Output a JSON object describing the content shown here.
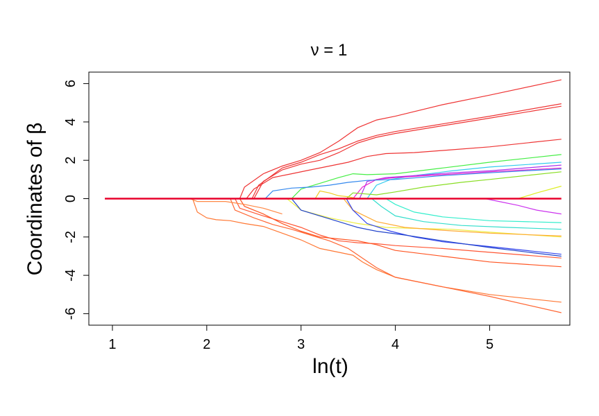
{
  "chart_data": {
    "type": "line",
    "title": "ν = 1",
    "xlabel": "ln(t)",
    "ylabel": "Coordinates of β",
    "xlim": [
      0.75,
      5.85
    ],
    "ylim": [
      -6.6,
      6.6
    ],
    "x_ticks": [
      1,
      2,
      3,
      4,
      5
    ],
    "y_ticks": [
      -6,
      -4,
      -2,
      0,
      2,
      4,
      6
    ],
    "x_tick_labels": [
      "1",
      "2",
      "3",
      "4",
      "5"
    ],
    "y_tick_labels": [
      "-6",
      "-4",
      "-2",
      "0",
      "2",
      "4",
      "6"
    ],
    "grid": false,
    "legend": "none",
    "zero_line_color": "#e8002a",
    "series": [
      {
        "color": "#ee3333",
        "points": [
          [
            0.92,
            0
          ],
          [
            2.35,
            0
          ],
          [
            2.4,
            0.6
          ],
          [
            2.6,
            1.3
          ],
          [
            2.8,
            1.7
          ],
          [
            3.0,
            2.0
          ],
          [
            3.2,
            2.4
          ],
          [
            3.4,
            3.0
          ],
          [
            3.6,
            3.7
          ],
          [
            3.8,
            4.1
          ],
          [
            4.0,
            4.3
          ],
          [
            4.5,
            4.9
          ],
          [
            5.0,
            5.4
          ],
          [
            5.76,
            6.2
          ]
        ]
      },
      {
        "color": "#ee3333",
        "points": [
          [
            0.92,
            0
          ],
          [
            2.48,
            0
          ],
          [
            2.55,
            0.7
          ],
          [
            2.8,
            1.6
          ],
          [
            3.0,
            1.9
          ],
          [
            3.2,
            2.3
          ],
          [
            3.4,
            2.6
          ],
          [
            3.6,
            3.0
          ],
          [
            3.8,
            3.3
          ],
          [
            4.0,
            3.5
          ],
          [
            4.5,
            3.9
          ],
          [
            5.0,
            4.3
          ],
          [
            5.76,
            4.95
          ]
        ]
      },
      {
        "color": "#ee3333",
        "points": [
          [
            0.92,
            0
          ],
          [
            2.5,
            0
          ],
          [
            2.6,
            0.9
          ],
          [
            2.8,
            1.5
          ],
          [
            3.0,
            1.8
          ],
          [
            3.2,
            2.0
          ],
          [
            3.4,
            2.4
          ],
          [
            3.6,
            2.9
          ],
          [
            3.8,
            3.2
          ],
          [
            4.0,
            3.4
          ],
          [
            4.5,
            3.8
          ],
          [
            5.0,
            4.2
          ],
          [
            5.76,
            4.82
          ]
        ]
      },
      {
        "color": "#ee3333",
        "points": [
          [
            0.92,
            0
          ],
          [
            2.42,
            0
          ],
          [
            2.5,
            0.5
          ],
          [
            2.7,
            1.1
          ],
          [
            2.9,
            1.3
          ],
          [
            3.1,
            1.5
          ],
          [
            3.3,
            1.7
          ],
          [
            3.5,
            1.9
          ],
          [
            3.7,
            2.2
          ],
          [
            3.9,
            2.35
          ],
          [
            4.2,
            2.4
          ],
          [
            4.6,
            2.55
          ],
          [
            5.0,
            2.7
          ],
          [
            5.76,
            3.1
          ]
        ]
      },
      {
        "color": "#44ee44",
        "points": [
          [
            0.92,
            0
          ],
          [
            2.9,
            0
          ],
          [
            3.0,
            0.5
          ],
          [
            3.2,
            0.8
          ],
          [
            3.4,
            1.1
          ],
          [
            3.55,
            1.3
          ],
          [
            3.7,
            1.25
          ],
          [
            4.0,
            1.3
          ],
          [
            4.5,
            1.6
          ],
          [
            5.0,
            1.9
          ],
          [
            5.76,
            2.3
          ]
        ]
      },
      {
        "color": "#33ccee",
        "points": [
          [
            0.92,
            0
          ],
          [
            3.7,
            0
          ],
          [
            3.8,
            0.7
          ],
          [
            3.95,
            1.0
          ],
          [
            4.2,
            1.2
          ],
          [
            4.6,
            1.45
          ],
          [
            5.0,
            1.65
          ],
          [
            5.76,
            1.9
          ]
        ]
      },
      {
        "color": "#aa33ee",
        "points": [
          [
            0.92,
            0
          ],
          [
            3.62,
            0
          ],
          [
            3.7,
            0.9
          ],
          [
            3.9,
            1.1
          ],
          [
            4.2,
            1.2
          ],
          [
            4.6,
            1.35
          ],
          [
            5.0,
            1.45
          ],
          [
            5.76,
            1.75
          ]
        ]
      },
      {
        "color": "#ee22cc",
        "points": [
          [
            0.92,
            0
          ],
          [
            3.55,
            0
          ],
          [
            3.65,
            0.6
          ],
          [
            3.8,
            1.0
          ],
          [
            4.0,
            1.1
          ],
          [
            4.5,
            1.25
          ],
          [
            5.0,
            1.4
          ],
          [
            5.76,
            1.6
          ]
        ]
      },
      {
        "color": "#3388ee",
        "points": [
          [
            0.92,
            0
          ],
          [
            2.62,
            0
          ],
          [
            2.7,
            0.4
          ],
          [
            2.9,
            0.55
          ],
          [
            3.1,
            0.6
          ],
          [
            3.3,
            0.7
          ],
          [
            3.5,
            0.85
          ],
          [
            3.7,
            0.95
          ],
          [
            4.0,
            1.0
          ],
          [
            4.5,
            1.2
          ],
          [
            5.0,
            1.35
          ],
          [
            5.76,
            1.55
          ]
        ]
      },
      {
        "color": "#88dd22",
        "points": [
          [
            0.92,
            0
          ],
          [
            3.48,
            0
          ],
          [
            3.55,
            0.3
          ],
          [
            3.8,
            0.2
          ],
          [
            4.0,
            0.35
          ],
          [
            4.3,
            0.6
          ],
          [
            4.7,
            0.85
          ],
          [
            5.0,
            1.0
          ],
          [
            5.76,
            1.4
          ]
        ]
      },
      {
        "color": "#ddee22",
        "points": [
          [
            0.92,
            0
          ],
          [
            5.3,
            0
          ],
          [
            5.5,
            0.3
          ],
          [
            5.76,
            0.65
          ]
        ]
      },
      {
        "color": "#eecc22",
        "points": [
          [
            0.92,
            0
          ],
          [
            3.15,
            0
          ],
          [
            3.2,
            0.4
          ],
          [
            3.3,
            0.3
          ],
          [
            3.4,
            0.15
          ],
          [
            3.5,
            0.1
          ],
          [
            3.6,
            0.0
          ]
        ]
      },
      {
        "color": "#cc33ee",
        "points": [
          [
            0.92,
            0
          ],
          [
            4.95,
            0
          ],
          [
            5.1,
            -0.15
          ],
          [
            5.3,
            -0.35
          ],
          [
            5.5,
            -0.6
          ],
          [
            5.76,
            -0.8
          ]
        ]
      },
      {
        "color": "#33eecc",
        "points": [
          [
            0.92,
            0
          ],
          [
            3.9,
            0
          ],
          [
            4.0,
            -0.3
          ],
          [
            4.2,
            -0.7
          ],
          [
            4.5,
            -0.95
          ],
          [
            5.0,
            -1.15
          ],
          [
            5.76,
            -1.25
          ]
        ]
      },
      {
        "color": "#33ddcc",
        "points": [
          [
            0.92,
            0
          ],
          [
            3.75,
            0
          ],
          [
            3.85,
            -0.4
          ],
          [
            4.0,
            -0.9
          ],
          [
            4.3,
            -1.2
          ],
          [
            4.7,
            -1.4
          ],
          [
            5.2,
            -1.5
          ],
          [
            5.76,
            -1.6
          ]
        ]
      },
      {
        "color": "#eeee44",
        "points": [
          [
            0.92,
            0
          ],
          [
            2.85,
            0
          ],
          [
            3.0,
            -0.6
          ],
          [
            3.3,
            -1.0
          ],
          [
            3.6,
            -1.3
          ],
          [
            3.9,
            -1.5
          ],
          [
            4.2,
            -1.55
          ],
          [
            4.6,
            -1.6
          ],
          [
            5.0,
            -1.75
          ],
          [
            5.76,
            -2.0
          ]
        ]
      },
      {
        "color": "#ffaa33",
        "points": [
          [
            0.92,
            0
          ],
          [
            3.45,
            0
          ],
          [
            3.55,
            -0.6
          ],
          [
            3.8,
            -1.2
          ],
          [
            4.1,
            -1.5
          ],
          [
            4.5,
            -1.65
          ],
          [
            5.0,
            -1.8
          ],
          [
            5.76,
            -1.95
          ]
        ]
      },
      {
        "color": "#3344ee",
        "points": [
          [
            0.92,
            0
          ],
          [
            3.48,
            0
          ],
          [
            3.55,
            -0.6
          ],
          [
            3.7,
            -1.3
          ],
          [
            3.95,
            -1.7
          ],
          [
            4.2,
            -2.0
          ],
          [
            4.5,
            -2.25
          ],
          [
            5.0,
            -2.5
          ],
          [
            5.76,
            -2.9
          ]
        ]
      },
      {
        "color": "#2244cc",
        "points": [
          [
            0.92,
            0
          ],
          [
            2.9,
            0
          ],
          [
            3.0,
            -0.6
          ],
          [
            3.2,
            -0.9
          ],
          [
            3.4,
            -1.2
          ],
          [
            3.6,
            -1.5
          ],
          [
            3.8,
            -1.7
          ],
          [
            4.1,
            -1.9
          ],
          [
            4.5,
            -2.2
          ],
          [
            5.0,
            -2.55
          ],
          [
            5.76,
            -3.0
          ]
        ]
      },
      {
        "color": "#ff7733",
        "points": [
          [
            0.92,
            0
          ],
          [
            1.85,
            0
          ],
          [
            1.9,
            -0.7
          ],
          [
            2.0,
            -1.0
          ],
          [
            2.1,
            -1.1
          ],
          [
            2.25,
            -1.15
          ],
          [
            2.4,
            -1.3
          ],
          [
            2.6,
            -1.45
          ],
          [
            2.8,
            -1.8
          ],
          [
            3.0,
            -2.15
          ],
          [
            3.2,
            -2.6
          ],
          [
            3.4,
            -2.8
          ],
          [
            3.55,
            -2.95
          ],
          [
            3.65,
            -3.3
          ],
          [
            3.8,
            -3.7
          ],
          [
            4.0,
            -4.1
          ],
          [
            4.5,
            -4.6
          ],
          [
            5.0,
            -5.0
          ],
          [
            5.76,
            -5.4
          ]
        ]
      },
      {
        "color": "#ff6633",
        "points": [
          [
            0.92,
            0
          ],
          [
            2.25,
            0
          ],
          [
            2.3,
            -0.6
          ],
          [
            2.5,
            -1.0
          ],
          [
            2.7,
            -1.35
          ],
          [
            2.9,
            -1.6
          ],
          [
            3.1,
            -1.9
          ],
          [
            3.3,
            -2.2
          ],
          [
            3.5,
            -2.6
          ],
          [
            3.65,
            -3.1
          ],
          [
            3.8,
            -3.6
          ],
          [
            4.0,
            -4.1
          ],
          [
            4.5,
            -4.6
          ],
          [
            5.0,
            -5.1
          ],
          [
            5.76,
            -5.95
          ]
        ]
      },
      {
        "color": "#ff5533",
        "points": [
          [
            0.92,
            0
          ],
          [
            2.3,
            0
          ],
          [
            2.35,
            -0.5
          ],
          [
            2.6,
            -0.9
          ],
          [
            2.8,
            -1.2
          ],
          [
            3.0,
            -1.5
          ],
          [
            3.2,
            -1.9
          ],
          [
            3.4,
            -2.2
          ],
          [
            3.6,
            -2.3
          ],
          [
            3.8,
            -2.35
          ],
          [
            4.0,
            -2.45
          ],
          [
            4.5,
            -2.6
          ],
          [
            5.0,
            -2.8
          ],
          [
            5.76,
            -3.1
          ]
        ]
      },
      {
        "color": "#ff5522",
        "points": [
          [
            0.92,
            0
          ],
          [
            2.35,
            0
          ],
          [
            2.4,
            -0.4
          ],
          [
            2.6,
            -0.8
          ],
          [
            2.8,
            -1.3
          ],
          [
            3.0,
            -1.7
          ],
          [
            3.2,
            -2.0
          ],
          [
            3.4,
            -2.1
          ],
          [
            3.6,
            -2.2
          ],
          [
            3.8,
            -2.4
          ],
          [
            4.0,
            -2.7
          ],
          [
            4.5,
            -3.0
          ],
          [
            5.0,
            -3.3
          ],
          [
            5.76,
            -3.55
          ]
        ]
      },
      {
        "color": "#ff8844",
        "points": [
          [
            0.92,
            0
          ],
          [
            1.82,
            0
          ],
          [
            1.9,
            -0.15
          ],
          [
            2.2,
            -0.15
          ],
          [
            2.4,
            -0.3
          ],
          [
            2.6,
            -0.5
          ],
          [
            2.8,
            -0.8
          ]
        ]
      }
    ]
  }
}
